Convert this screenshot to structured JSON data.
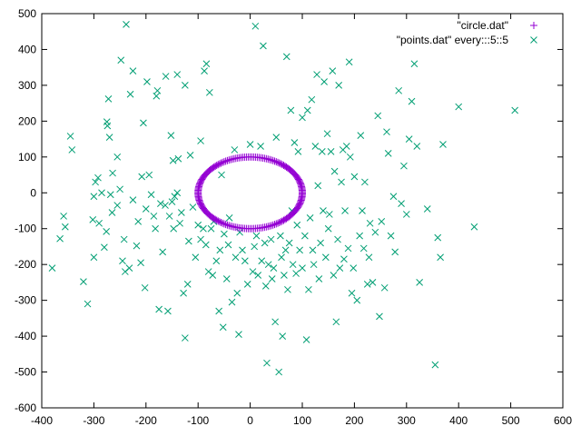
{
  "chart_data": {
    "type": "scatter",
    "title": "",
    "xlabel": "",
    "ylabel": "",
    "xlim": [
      -400,
      600
    ],
    "ylim": [
      -600,
      500
    ],
    "x_ticks": [
      -400,
      -300,
      -200,
      -100,
      0,
      100,
      200,
      300,
      400,
      500,
      600
    ],
    "y_ticks": [
      -600,
      -500,
      -400,
      -300,
      -200,
      -100,
      0,
      100,
      200,
      300,
      400,
      500
    ],
    "grid": false,
    "legend_position": "top-right",
    "series": [
      {
        "name": "\"circle.dat\"",
        "marker": "plus",
        "color": "#9400d3",
        "shape": "ellipse",
        "center": [
          0,
          0
        ],
        "radius_x": 100,
        "radius_y": 100,
        "n_points": 180
      },
      {
        "name": "\"points.dat\" every:::5::5",
        "marker": "x",
        "color": "#009e73",
        "points": [
          [
            -380,
            -210
          ],
          [
            -365,
            -128
          ],
          [
            -358,
            -65
          ],
          [
            -355,
            -95
          ],
          [
            -345,
            158
          ],
          [
            -342,
            120
          ],
          [
            -320,
            -248
          ],
          [
            -312,
            -310
          ],
          [
            -302,
            -75
          ],
          [
            -300,
            -180
          ],
          [
            -300,
            -10
          ],
          [
            -297,
            30
          ],
          [
            -292,
            42
          ],
          [
            -290,
            -85
          ],
          [
            -285,
            0
          ],
          [
            -280,
            -152
          ],
          [
            -276,
            -108
          ],
          [
            -275,
            198
          ],
          [
            -274,
            187
          ],
          [
            -272,
            262
          ],
          [
            -270,
            155
          ],
          [
            -268,
            -5
          ],
          [
            -265,
            -55
          ],
          [
            -264,
            55
          ],
          [
            -255,
            -35
          ],
          [
            -255,
            100
          ],
          [
            -250,
            10
          ],
          [
            -248,
            370
          ],
          [
            -245,
            -190
          ],
          [
            -242,
            -130
          ],
          [
            -240,
            -220
          ],
          [
            -238,
            470
          ],
          [
            -232,
            -210
          ],
          [
            -230,
            275
          ],
          [
            -225,
            -20
          ],
          [
            -225,
            340
          ],
          [
            -218,
            -148
          ],
          [
            -215,
            -80
          ],
          [
            -210,
            -195
          ],
          [
            -208,
            45
          ],
          [
            -205,
            195
          ],
          [
            -202,
            -265
          ],
          [
            -200,
            -45
          ],
          [
            -198,
            310
          ],
          [
            -194,
            50
          ],
          [
            -190,
            -5
          ],
          [
            -185,
            -65
          ],
          [
            -182,
            -100
          ],
          [
            -180,
            270
          ],
          [
            -178,
            285
          ],
          [
            -175,
            -325
          ],
          [
            -172,
            -30
          ],
          [
            -168,
            -165
          ],
          [
            -163,
            -35
          ],
          [
            -162,
            325
          ],
          [
            -158,
            -330
          ],
          [
            -155,
            -65
          ],
          [
            -152,
            160
          ],
          [
            -150,
            -25
          ],
          [
            -148,
            90
          ],
          [
            -147,
            -100
          ],
          [
            -145,
            -10
          ],
          [
            -140,
            0
          ],
          [
            -140,
            330
          ],
          [
            -138,
            95
          ],
          [
            -135,
            -85
          ],
          [
            -132,
            -55
          ],
          [
            -128,
            -280
          ],
          [
            -125,
            300
          ],
          [
            -125,
            -405
          ],
          [
            -120,
            -255
          ],
          [
            -118,
            -135
          ],
          [
            -115,
            105
          ],
          [
            -110,
            -40
          ],
          [
            -105,
            -180
          ],
          [
            -100,
            -90
          ],
          [
            -95,
            -130
          ],
          [
            -95,
            145
          ],
          [
            -90,
            -100
          ],
          [
            -88,
            340
          ],
          [
            -85,
            -145
          ],
          [
            -84,
            360
          ],
          [
            -80,
            -220
          ],
          [
            -78,
            280
          ],
          [
            -75,
            -100
          ],
          [
            -72,
            -230
          ],
          [
            -70,
            -80
          ],
          [
            -65,
            -190
          ],
          [
            -60,
            -330
          ],
          [
            -58,
            -160
          ],
          [
            -55,
            50
          ],
          [
            -52,
            -375
          ],
          [
            -50,
            -115
          ],
          [
            -45,
            -240
          ],
          [
            -42,
            -145
          ],
          [
            -40,
            -70
          ],
          [
            -35,
            -305
          ],
          [
            -30,
            120
          ],
          [
            -28,
            -180
          ],
          [
            -25,
            -280
          ],
          [
            -22,
            -395
          ],
          [
            -20,
            -110
          ],
          [
            -15,
            -160
          ],
          [
            -10,
            -190
          ],
          [
            -5,
            -255
          ],
          [
            0,
            135
          ],
          [
            5,
            -220
          ],
          [
            8,
            -150
          ],
          [
            10,
            465
          ],
          [
            12,
            -120
          ],
          [
            15,
            -230
          ],
          [
            20,
            130
          ],
          [
            22,
            -190
          ],
          [
            25,
            410
          ],
          [
            28,
            -140
          ],
          [
            30,
            -260
          ],
          [
            32,
            -475
          ],
          [
            35,
            -200
          ],
          [
            40,
            -130
          ],
          [
            42,
            -240
          ],
          [
            45,
            -210
          ],
          [
            48,
            -360
          ],
          [
            50,
            155
          ],
          [
            55,
            -500
          ],
          [
            58,
            -120
          ],
          [
            60,
            -180
          ],
          [
            62,
            -400
          ],
          [
            65,
            -230
          ],
          [
            68,
            -160
          ],
          [
            70,
            380
          ],
          [
            72,
            -270
          ],
          [
            75,
            -140
          ],
          [
            78,
            230
          ],
          [
            80,
            -50
          ],
          [
            82,
            -200
          ],
          [
            85,
            140
          ],
          [
            88,
            -225
          ],
          [
            90,
            -90
          ],
          [
            92,
            115
          ],
          [
            95,
            -160
          ],
          [
            100,
            -210
          ],
          [
            100,
            210
          ],
          [
            105,
            -120
          ],
          [
            108,
            -410
          ],
          [
            110,
            230
          ],
          [
            112,
            -270
          ],
          [
            115,
            -70
          ],
          [
            118,
            260
          ],
          [
            120,
            -160
          ],
          [
            122,
            -200
          ],
          [
            125,
            130
          ],
          [
            128,
            330
          ],
          [
            130,
            20
          ],
          [
            132,
            -240
          ],
          [
            135,
            -140
          ],
          [
            138,
            115
          ],
          [
            140,
            -50
          ],
          [
            142,
            310
          ],
          [
            145,
            -180
          ],
          [
            148,
            165
          ],
          [
            150,
            -100
          ],
          [
            152,
            -60
          ],
          [
            155,
            115
          ],
          [
            158,
            340
          ],
          [
            160,
            -230
          ],
          [
            162,
            60
          ],
          [
            165,
            -360
          ],
          [
            168,
            -130
          ],
          [
            170,
            300
          ],
          [
            172,
            -210
          ],
          [
            175,
            30
          ],
          [
            178,
            120
          ],
          [
            180,
            -185
          ],
          [
            182,
            -50
          ],
          [
            185,
            130
          ],
          [
            188,
            -155
          ],
          [
            190,
            365
          ],
          [
            192,
            100
          ],
          [
            195,
            -280
          ],
          [
            198,
            -210
          ],
          [
            200,
            45
          ],
          [
            205,
            -300
          ],
          [
            210,
            -120
          ],
          [
            212,
            160
          ],
          [
            215,
            -50
          ],
          [
            218,
            -155
          ],
          [
            220,
            30
          ],
          [
            225,
            -255
          ],
          [
            228,
            -180
          ],
          [
            230,
            -85
          ],
          [
            235,
            -250
          ],
          [
            240,
            -110
          ],
          [
            245,
            215
          ],
          [
            248,
            -345
          ],
          [
            252,
            -80
          ],
          [
            258,
            -265
          ],
          [
            262,
            170
          ],
          [
            265,
            110
          ],
          [
            270,
            -120
          ],
          [
            275,
            -10
          ],
          [
            278,
            -165
          ],
          [
            285,
            285
          ],
          [
            290,
            -30
          ],
          [
            295,
            75
          ],
          [
            300,
            -60
          ],
          [
            305,
            150
          ],
          [
            310,
            255
          ],
          [
            315,
            360
          ],
          [
            320,
            130
          ],
          [
            325,
            -250
          ],
          [
            340,
            -45
          ],
          [
            355,
            -480
          ],
          [
            360,
            -125
          ],
          [
            365,
            -180
          ],
          [
            370,
            135
          ],
          [
            400,
            240
          ],
          [
            430,
            -95
          ],
          [
            508,
            230
          ]
        ]
      }
    ]
  },
  "legend": {
    "items": [
      {
        "label": "\"circle.dat\"",
        "marker": "plus",
        "color": "#9400d3"
      },
      {
        "label": "\"points.dat\" every:::5::5",
        "marker": "x",
        "color": "#009e73"
      }
    ]
  }
}
